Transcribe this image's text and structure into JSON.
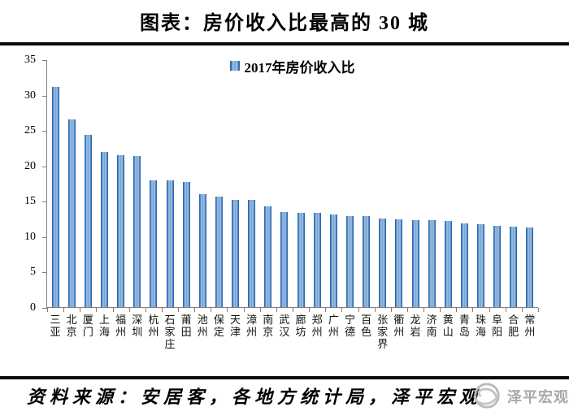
{
  "title": "图表：房价收入比最高的 30 城",
  "legend": {
    "label": "2017年房价收入比"
  },
  "footer": {
    "source": "资料来源：安居客，各地方统计局，泽平宏观",
    "watermark": "泽平宏观"
  },
  "colors": {
    "bar_edge": "#2a6ab5",
    "bar_light": "#a9c7e5",
    "bar_mid": "#6f9dd1",
    "axis": "#7f7f7f",
    "divider": "#0b0b0b",
    "watermark_gray": "#a8a8a8"
  },
  "chart_data": {
    "type": "bar",
    "title": "图表：房价收入比最高的 30 城",
    "legend_entries": [
      "2017年房价收入比"
    ],
    "legend_position": "top-center",
    "grid": false,
    "ylim": [
      0,
      35
    ],
    "yticks": [
      0,
      5,
      10,
      15,
      20,
      25,
      30,
      35
    ],
    "xlabel": "",
    "ylabel": "",
    "categories": [
      "三亚",
      "北京",
      "厦门",
      "上海",
      "福州",
      "深圳",
      "杭州",
      "石家庄",
      "莆田",
      "池州",
      "保定",
      "天津",
      "漳州",
      "南京",
      "武汉",
      "廊坊",
      "郑州",
      "广州",
      "宁德",
      "百色",
      "张家界",
      "衢州",
      "龙岩",
      "济南",
      "黄山",
      "青岛",
      "珠海",
      "阜阳",
      "合肥",
      "常州"
    ],
    "series": [
      {
        "name": "2017年房价收入比",
        "values": [
          31.1,
          26.5,
          24.3,
          21.9,
          21.5,
          21.4,
          17.9,
          17.9,
          17.7,
          15.9,
          15.6,
          15.2,
          15.1,
          14.2,
          13.4,
          13.3,
          13.3,
          13.1,
          12.8,
          12.8,
          12.5,
          12.4,
          12.3,
          12.3,
          12.2,
          11.8,
          11.7,
          11.5,
          11.4,
          11.2
        ]
      }
    ]
  }
}
